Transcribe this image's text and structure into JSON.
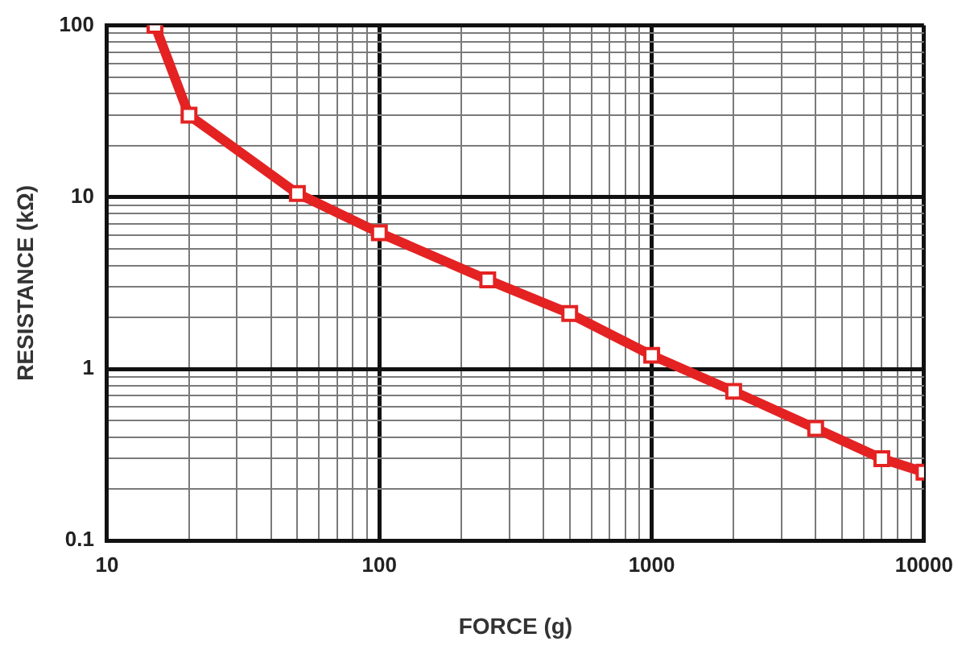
{
  "chart_data": {
    "type": "line",
    "xlabel": "FORCE (g)",
    "ylabel": "RESISTANCE (kΩ)",
    "log": "xy",
    "grid": true,
    "legend": false,
    "marker": "square",
    "line_style": "solid",
    "xlim": [
      10,
      10000
    ],
    "ylim": [
      0.1,
      100
    ],
    "xticks": [
      10,
      {
        "value": 20,
        "label": null
      },
      {
        "value": 30,
        "label": null
      },
      {
        "value": 40,
        "label": null
      },
      {
        "value": 50,
        "label": null
      },
      {
        "value": 60,
        "label": null
      },
      {
        "value": 70,
        "label": null
      },
      {
        "value": 80,
        "label": null
      },
      {
        "value": 90,
        "label": null
      },
      100,
      {
        "value": 200,
        "label": null
      },
      {
        "value": 300,
        "label": null
      },
      {
        "value": 400,
        "label": null
      },
      {
        "value": 500,
        "label": null
      },
      {
        "value": 600,
        "label": null
      },
      {
        "value": 700,
        "label": null
      },
      {
        "value": 800,
        "label": null
      },
      {
        "value": 900,
        "label": null
      },
      1000,
      {
        "value": 2000,
        "label": null
      },
      {
        "value": 3000,
        "label": null
      },
      {
        "value": 4000,
        "label": null
      },
      {
        "value": 5000,
        "label": null
      },
      {
        "value": 6000,
        "label": null
      },
      {
        "value": 7000,
        "label": null
      },
      {
        "value": 8000,
        "label": null
      },
      {
        "value": 9000,
        "label": null
      },
      10000
    ],
    "yticks": [
      0.1,
      {
        "value": 0.2,
        "label": null
      },
      {
        "value": 0.3,
        "label": null
      },
      {
        "value": 0.4,
        "label": null
      },
      {
        "value": 0.5,
        "label": null
      },
      {
        "value": 0.6,
        "label": null
      },
      {
        "value": 0.7,
        "label": null
      },
      {
        "value": 0.8,
        "label": null
      },
      {
        "value": 0.9,
        "label": null
      },
      1,
      {
        "value": 2,
        "label": null
      },
      {
        "value": 3,
        "label": null
      },
      {
        "value": 4,
        "label": null
      },
      {
        "value": 5,
        "label": null
      },
      {
        "value": 6,
        "label": null
      },
      {
        "value": 7,
        "label": null
      },
      {
        "value": 8,
        "label": null
      },
      {
        "value": 9,
        "label": null
      },
      10,
      {
        "value": 20,
        "label": null
      },
      {
        "value": 30,
        "label": null
      },
      {
        "value": 40,
        "label": null
      },
      {
        "value": 50,
        "label": null
      },
      {
        "value": 60,
        "label": null
      },
      {
        "value": 70,
        "label": null
      },
      {
        "value": 80,
        "label": null
      },
      {
        "value": 90,
        "label": null
      },
      100
    ],
    "series": [
      {
        "color": "#e42222",
        "x": [
          15,
          20,
          50,
          100,
          250,
          500,
          1000,
          2000,
          4000,
          7000,
          10000
        ],
        "values": [
          100,
          30,
          10.5,
          6.2,
          3.3,
          2.1,
          1.2,
          0.74,
          0.45,
          0.3,
          0.25
        ]
      }
    ]
  }
}
